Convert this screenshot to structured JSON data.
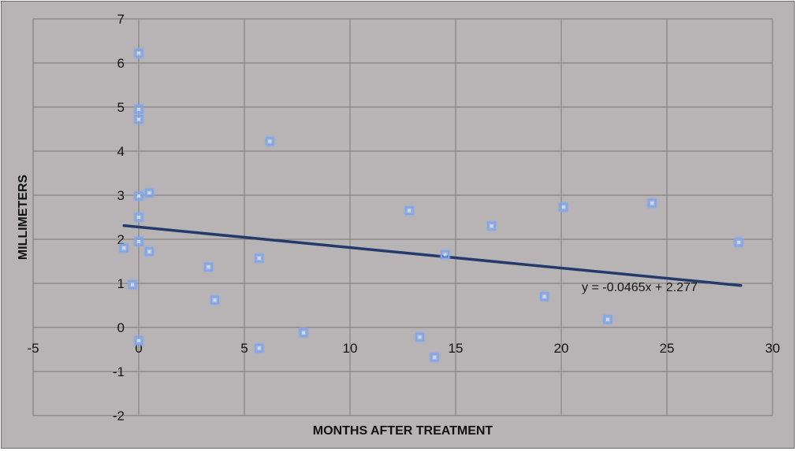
{
  "chart_data": {
    "type": "scatter",
    "title": "",
    "xlabel": "MONTHS AFTER TREATMENT",
    "ylabel": "MILLIMETERS",
    "xlim": [
      -5,
      30
    ],
    "ylim": [
      -2,
      7
    ],
    "x_ticks": [
      "-5",
      "0",
      "5",
      "10",
      "15",
      "20",
      "25",
      "30"
    ],
    "y_ticks": [
      "-2",
      "-1",
      "0",
      "1",
      "2",
      "3",
      "4",
      "5",
      "6",
      "7"
    ],
    "grid": true,
    "legend": "none",
    "marker_color": "#8eb0e6",
    "trendline_color": "#233a6b",
    "points": [
      {
        "x": 0.0,
        "y": 6.22
      },
      {
        "x": 0.0,
        "y": 4.95
      },
      {
        "x": 0.0,
        "y": 4.72
      },
      {
        "x": 0.0,
        "y": 2.98
      },
      {
        "x": 0.5,
        "y": 3.05
      },
      {
        "x": 0.0,
        "y": 2.5
      },
      {
        "x": 0.0,
        "y": 1.95
      },
      {
        "x": -0.7,
        "y": 1.8
      },
      {
        "x": 0.5,
        "y": 1.72
      },
      {
        "x": -0.3,
        "y": 0.97
      },
      {
        "x": 0.0,
        "y": -0.3
      },
      {
        "x": 3.3,
        "y": 1.37
      },
      {
        "x": 3.6,
        "y": 0.62
      },
      {
        "x": 5.7,
        "y": 1.57
      },
      {
        "x": 5.7,
        "y": -0.47
      },
      {
        "x": 6.2,
        "y": 4.22
      },
      {
        "x": 7.8,
        "y": -0.12
      },
      {
        "x": 12.8,
        "y": 2.65
      },
      {
        "x": 13.3,
        "y": -0.22
      },
      {
        "x": 14.0,
        "y": -0.68
      },
      {
        "x": 14.5,
        "y": 1.65
      },
      {
        "x": 16.7,
        "y": 2.3
      },
      {
        "x": 19.2,
        "y": 0.7
      },
      {
        "x": 20.1,
        "y": 2.73
      },
      {
        "x": 22.2,
        "y": 0.18
      },
      {
        "x": 24.3,
        "y": 2.82
      },
      {
        "x": 28.4,
        "y": 1.93
      }
    ],
    "trendline": {
      "slope": -0.0465,
      "intercept": 2.277,
      "x_range": [
        -0.7,
        28.5
      ],
      "equation": "y = -0.0465x + 2.277"
    }
  }
}
